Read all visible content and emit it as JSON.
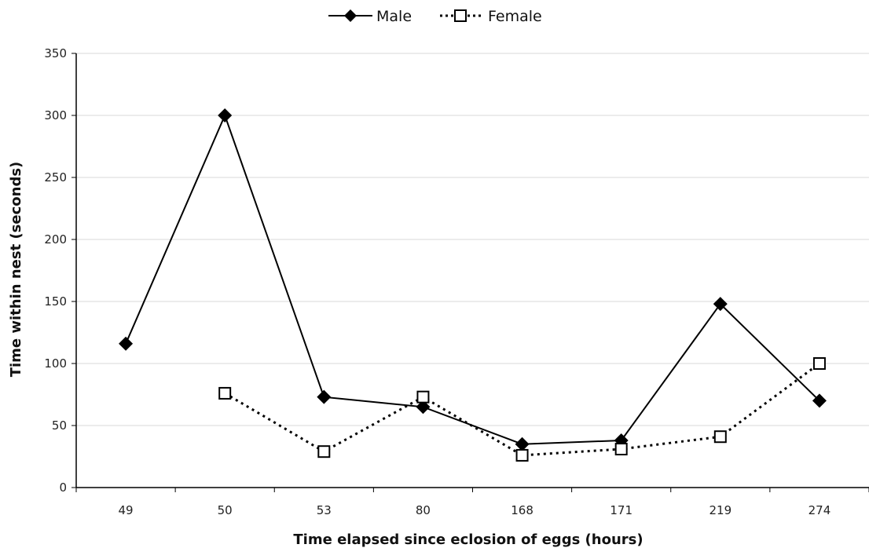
{
  "chart_data": {
    "type": "line",
    "categories": [
      "49",
      "50",
      "53",
      "80",
      "168",
      "171",
      "219",
      "274"
    ],
    "series": [
      {
        "name": "Male",
        "values": [
          116,
          300,
          73,
          65,
          35,
          38,
          148,
          70
        ],
        "color": "#000000",
        "marker": "diamond",
        "line": "solid"
      },
      {
        "name": "Female",
        "values": [
          null,
          76,
          29,
          73,
          26,
          31,
          41,
          100
        ],
        "color": "#000000",
        "marker": "open-square",
        "line": "dotted"
      }
    ],
    "xlabel": "Time elapsed since eclosion of eggs (hours)",
    "ylabel": "Time within nest (seconds)",
    "ylim": [
      0,
      350
    ],
    "yticks": [
      0,
      50,
      100,
      150,
      200,
      250,
      300,
      350
    ],
    "grid": "horizontal",
    "legend_position": "top-center"
  }
}
